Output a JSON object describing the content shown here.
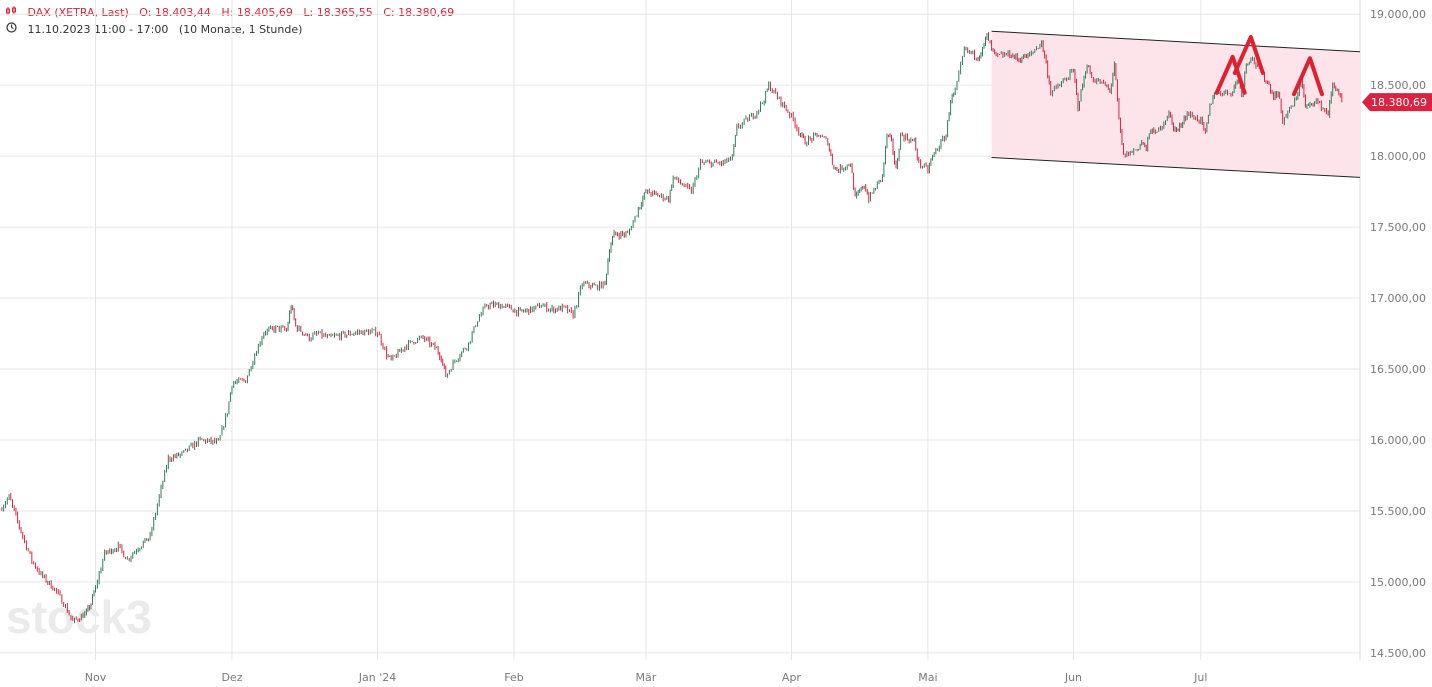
{
  "header": {
    "ohlc_icon": "candle-bars-icon",
    "instrument": "DAX (XETRA, Last)",
    "open": "O: 18.403,44",
    "high": "H: 18.405,69",
    "low": "L: 18.365,55",
    "close": "C: 18.380,69",
    "clock_icon": "clock-icon",
    "period": "11.10.2023 11:00 - 17:00",
    "range": "(10 Monate, 1 Stunde)"
  },
  "watermark": "stock3",
  "colors": {
    "up": "#2e7d5b",
    "down": "#d9233f",
    "channel_fill": "#fde4ea",
    "annotation": "#e0202f",
    "grid": "#e6e6e6",
    "axis_text": "#7a7a7a"
  },
  "chart_data": {
    "type": "line",
    "title": "DAX (XETRA, Last)",
    "interval": "1 Stunde",
    "y_axis": {
      "position": "right",
      "ylim": [
        14450,
        19100
      ],
      "ticks": [
        19000,
        18500,
        18000,
        17500,
        17000,
        16500,
        16000,
        15500,
        15000,
        14500
      ],
      "tick_labels": [
        "19.000,00",
        "18.500,00",
        "18.000,00",
        "17.500,00",
        "17.000,00",
        "16.500,00",
        "16.000,00",
        "15.500,00",
        "15.000,00",
        "14.500,00"
      ]
    },
    "x_axis": {
      "ticks": [
        "2023-11-01",
        "2023-12-01",
        "2024-01-02",
        "2024-02-01",
        "2024-03-01",
        "2024-04-02",
        "2024-05-02",
        "2024-06-03",
        "2024-07-01"
      ],
      "tick_labels": [
        "Nov",
        "Dez",
        "Jan '24",
        "Feb",
        "Mär",
        "Apr",
        "Mai",
        "Jun",
        "Jul"
      ],
      "range": [
        "2023-10-11",
        "2024-08-05"
      ]
    },
    "grid": true,
    "series": [
      {
        "values": [
          [
            "2023-10-11",
            15510
          ],
          [
            "2023-10-13",
            15600
          ],
          [
            "2023-10-16",
            15320
          ],
          [
            "2023-10-18",
            15150
          ],
          [
            "2023-10-20",
            15050
          ],
          [
            "2023-10-23",
            14950
          ],
          [
            "2023-10-25",
            14850
          ],
          [
            "2023-10-27",
            14720
          ],
          [
            "2023-10-30",
            14780
          ],
          [
            "2023-10-31",
            14850
          ],
          [
            "2023-11-01",
            14960
          ],
          [
            "2023-11-03",
            15200
          ],
          [
            "2023-11-06",
            15250
          ],
          [
            "2023-11-08",
            15160
          ],
          [
            "2023-11-10",
            15230
          ],
          [
            "2023-11-13",
            15320
          ],
          [
            "2023-11-15",
            15600
          ],
          [
            "2023-11-17",
            15870
          ],
          [
            "2023-11-20",
            15900
          ],
          [
            "2023-11-22",
            15950
          ],
          [
            "2023-11-24",
            16000
          ],
          [
            "2023-11-28",
            15980
          ],
          [
            "2023-11-30",
            16200
          ],
          [
            "2023-12-01",
            16400
          ],
          [
            "2023-12-04",
            16420
          ],
          [
            "2023-12-06",
            16600
          ],
          [
            "2023-12-08",
            16760
          ],
          [
            "2023-12-11",
            16790
          ],
          [
            "2023-12-13",
            16770
          ],
          [
            "2023-12-14",
            16950
          ],
          [
            "2023-12-15",
            16800
          ],
          [
            "2023-12-18",
            16720
          ],
          [
            "2023-12-20",
            16750
          ],
          [
            "2023-12-22",
            16720
          ],
          [
            "2023-12-27",
            16750
          ],
          [
            "2023-12-29",
            16760
          ],
          [
            "2024-01-02",
            16760
          ],
          [
            "2024-01-04",
            16600
          ],
          [
            "2024-01-05",
            16560
          ],
          [
            "2024-01-08",
            16660
          ],
          [
            "2024-01-10",
            16700
          ],
          [
            "2024-01-12",
            16720
          ],
          [
            "2024-01-15",
            16640
          ],
          [
            "2024-01-16",
            16580
          ],
          [
            "2024-01-17",
            16450
          ],
          [
            "2024-01-19",
            16560
          ],
          [
            "2024-01-22",
            16680
          ],
          [
            "2024-01-24",
            16850
          ],
          [
            "2024-01-26",
            16950
          ],
          [
            "2024-01-29",
            16950
          ],
          [
            "2024-01-31",
            16930
          ],
          [
            "2024-02-02",
            16900
          ],
          [
            "2024-02-05",
            16920
          ],
          [
            "2024-02-07",
            16950
          ],
          [
            "2024-02-09",
            16920
          ],
          [
            "2024-02-12",
            16930
          ],
          [
            "2024-02-14",
            16880
          ],
          [
            "2024-02-16",
            17100
          ],
          [
            "2024-02-19",
            17080
          ],
          [
            "2024-02-21",
            17100
          ],
          [
            "2024-02-22",
            17350
          ],
          [
            "2024-02-23",
            17450
          ],
          [
            "2024-02-26",
            17450
          ],
          [
            "2024-02-28",
            17600
          ],
          [
            "2024-02-29",
            17680
          ],
          [
            "2024-03-01",
            17750
          ],
          [
            "2024-03-04",
            17720
          ],
          [
            "2024-03-06",
            17700
          ],
          [
            "2024-03-07",
            17850
          ],
          [
            "2024-03-11",
            17750
          ],
          [
            "2024-03-13",
            17950
          ],
          [
            "2024-03-15",
            17950
          ],
          [
            "2024-03-18",
            17950
          ],
          [
            "2024-03-20",
            17990
          ],
          [
            "2024-03-21",
            18200
          ],
          [
            "2024-03-25",
            18300
          ],
          [
            "2024-03-27",
            18400
          ],
          [
            "2024-03-28",
            18500
          ],
          [
            "2024-04-02",
            18280
          ],
          [
            "2024-04-04",
            18150
          ],
          [
            "2024-04-05",
            18100
          ],
          [
            "2024-04-08",
            18150
          ],
          [
            "2024-04-10",
            18100
          ],
          [
            "2024-04-11",
            17950
          ],
          [
            "2024-04-12",
            17900
          ],
          [
            "2024-04-15",
            17950
          ],
          [
            "2024-04-16",
            17700
          ],
          [
            "2024-04-17",
            17750
          ],
          [
            "2024-04-18",
            17800
          ],
          [
            "2024-04-19",
            17700
          ],
          [
            "2024-04-22",
            17860
          ],
          [
            "2024-04-23",
            18150
          ],
          [
            "2024-04-24",
            18100
          ],
          [
            "2024-04-25",
            17900
          ],
          [
            "2024-04-26",
            18150
          ],
          [
            "2024-04-29",
            18100
          ],
          [
            "2024-04-30",
            17950
          ],
          [
            "2024-05-02",
            17900
          ],
          [
            "2024-05-03",
            18000
          ],
          [
            "2024-05-06",
            18150
          ],
          [
            "2024-05-07",
            18400
          ],
          [
            "2024-05-08",
            18450
          ],
          [
            "2024-05-10",
            18750
          ],
          [
            "2024-05-13",
            18700
          ],
          [
            "2024-05-14",
            18750
          ],
          [
            "2024-05-15",
            18850
          ],
          [
            "2024-05-16",
            18750
          ],
          [
            "2024-05-17",
            18700
          ],
          [
            "2024-05-20",
            18720
          ],
          [
            "2024-05-21",
            18700
          ],
          [
            "2024-05-22",
            18680
          ],
          [
            "2024-05-23",
            18700
          ],
          [
            "2024-05-24",
            18700
          ],
          [
            "2024-05-27",
            18800
          ],
          [
            "2024-05-28",
            18650
          ],
          [
            "2024-05-29",
            18450
          ],
          [
            "2024-05-31",
            18500
          ],
          [
            "2024-06-03",
            18600
          ],
          [
            "2024-06-04",
            18350
          ],
          [
            "2024-06-05",
            18500
          ],
          [
            "2024-06-06",
            18650
          ],
          [
            "2024-06-07",
            18550
          ],
          [
            "2024-06-10",
            18500
          ],
          [
            "2024-06-11",
            18450
          ],
          [
            "2024-06-12",
            18650
          ],
          [
            "2024-06-13",
            18250
          ],
          [
            "2024-06-14",
            18000
          ],
          [
            "2024-06-17",
            18050
          ],
          [
            "2024-06-18",
            18100
          ],
          [
            "2024-06-19",
            18050
          ],
          [
            "2024-06-20",
            18200
          ],
          [
            "2024-06-21",
            18150
          ],
          [
            "2024-06-24",
            18300
          ],
          [
            "2024-06-25",
            18200
          ],
          [
            "2024-06-26",
            18180
          ],
          [
            "2024-06-27",
            18250
          ],
          [
            "2024-06-28",
            18300
          ],
          [
            "2024-07-01",
            18250
          ],
          [
            "2024-07-02",
            18150
          ],
          [
            "2024-07-03",
            18350
          ],
          [
            "2024-07-04",
            18450
          ],
          [
            "2024-07-05",
            18450
          ],
          [
            "2024-07-08",
            18450
          ],
          [
            "2024-07-09",
            18550
          ],
          [
            "2024-07-10",
            18450
          ],
          [
            "2024-07-11",
            18650
          ],
          [
            "2024-07-12",
            18700
          ],
          [
            "2024-07-15",
            18550
          ],
          [
            "2024-07-16",
            18500
          ],
          [
            "2024-07-17",
            18420
          ],
          [
            "2024-07-18",
            18450
          ],
          [
            "2024-07-19",
            18250
          ],
          [
            "2024-07-22",
            18400
          ],
          [
            "2024-07-23",
            18550
          ],
          [
            "2024-07-24",
            18350
          ],
          [
            "2024-07-25",
            18350
          ],
          [
            "2024-07-26",
            18400
          ],
          [
            "2024-07-29",
            18300
          ],
          [
            "2024-07-30",
            18500
          ],
          [
            "2024-07-31",
            18470
          ],
          [
            "2024-08-01",
            18380
          ]
        ]
      }
    ],
    "last_price_label": "18.380,69",
    "last_price": 18380.69,
    "channel": {
      "upper": [
        [
          "2024-05-16",
          18880
        ],
        [
          "2024-08-05",
          18735
        ]
      ],
      "lower": [
        [
          "2024-05-16",
          17990
        ],
        [
          "2024-08-05",
          17850
        ]
      ]
    },
    "annotations": {
      "peaks": [
        {
          "x": "2024-07-08",
          "y": 18700
        },
        {
          "x": "2024-07-12",
          "y": 18840
        },
        {
          "x": "2024-07-25",
          "y": 18690
        }
      ]
    }
  }
}
